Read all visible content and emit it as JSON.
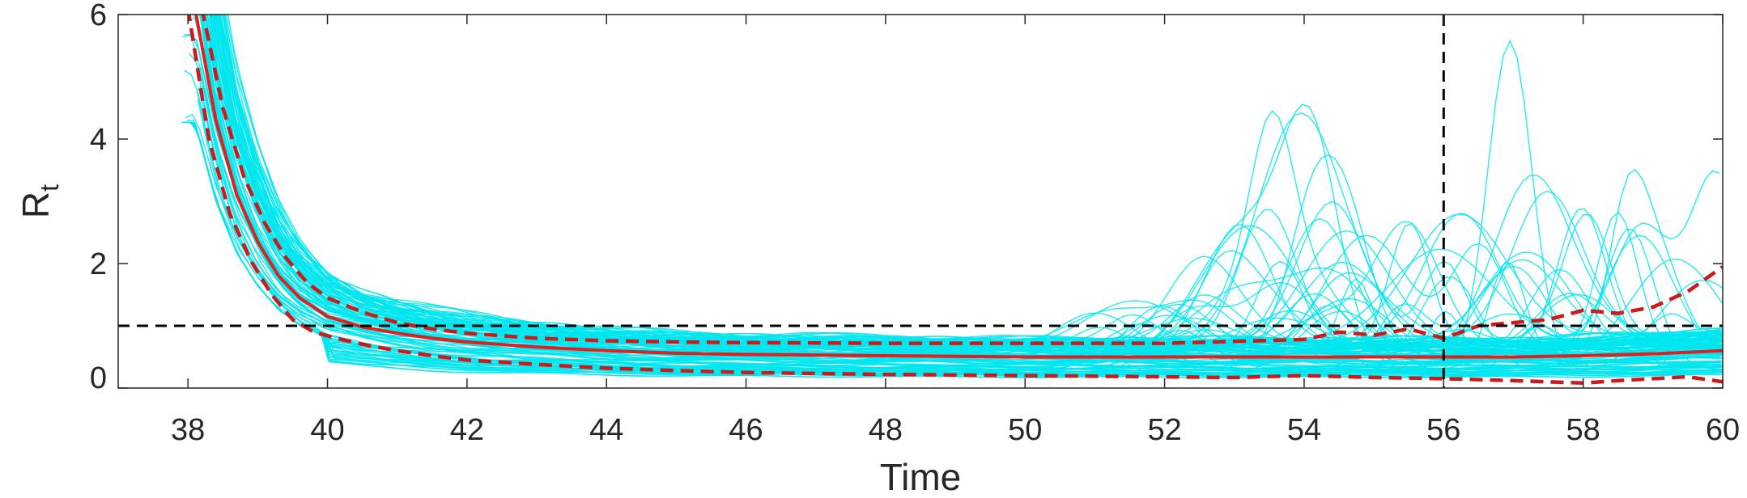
{
  "chart_data": {
    "type": "line",
    "xlabel": "Time",
    "ylabel": "R",
    "ylabel_subscript": "t",
    "xlim": [
      37,
      60
    ],
    "ylim": [
      0,
      6
    ],
    "xticks": [
      38,
      40,
      42,
      44,
      46,
      48,
      50,
      52,
      54,
      56,
      58,
      60
    ],
    "yticks": [
      0,
      2,
      4,
      6
    ],
    "grid": false,
    "legend": "none",
    "colors": {
      "samples": "#00e5ee",
      "median": "#e01f1f",
      "bounds": "#cc1a1a",
      "reference": "#000000"
    },
    "reference_lines": {
      "hline_y": 1,
      "vline_x": 56
    },
    "sample_count": 120,
    "series": [
      {
        "role": "median",
        "style": "solid",
        "x": [
          38.1,
          38.4,
          38.7,
          39.0,
          39.3,
          39.6,
          40.0,
          40.5,
          41.0,
          41.5,
          42,
          43,
          44,
          45,
          46,
          48,
          50,
          52,
          54,
          56,
          57,
          58,
          59,
          60
        ],
        "y": [
          6.1,
          4.3,
          3.1,
          2.35,
          1.8,
          1.45,
          1.15,
          0.98,
          0.88,
          0.8,
          0.74,
          0.66,
          0.6,
          0.56,
          0.54,
          0.52,
          0.5,
          0.5,
          0.5,
          0.5,
          0.5,
          0.52,
          0.55,
          0.6
        ]
      },
      {
        "role": "upper",
        "style": "dashed",
        "x": [
          38.2,
          38.5,
          38.8,
          39.1,
          39.4,
          39.7,
          40.0,
          40.5,
          41.0,
          41.5,
          42,
          43,
          44,
          45,
          46,
          48,
          50,
          52,
          53,
          54,
          54.5,
          55,
          55.5,
          56,
          56.5,
          57,
          57.5,
          58,
          58.5,
          59,
          59.5,
          60
        ],
        "y": [
          6.1,
          4.5,
          3.4,
          2.65,
          2.1,
          1.7,
          1.45,
          1.22,
          1.05,
          0.95,
          0.88,
          0.8,
          0.76,
          0.74,
          0.73,
          0.72,
          0.72,
          0.72,
          0.75,
          0.78,
          0.9,
          0.85,
          0.95,
          0.8,
          1.0,
          1.05,
          1.1,
          1.25,
          1.2,
          1.3,
          1.55,
          1.95
        ]
      },
      {
        "role": "lower",
        "style": "dashed",
        "x": [
          38.0,
          38.3,
          38.6,
          38.9,
          39.2,
          39.5,
          39.8,
          40.2,
          40.6,
          41.0,
          41.5,
          42,
          43,
          44,
          45,
          46,
          48,
          50,
          52,
          53,
          54,
          55,
          56,
          57,
          58,
          58.5,
          59,
          59.5,
          60
        ],
        "y": [
          6.1,
          4.0,
          2.8,
          2.05,
          1.5,
          1.1,
          0.9,
          0.78,
          0.68,
          0.6,
          0.52,
          0.45,
          0.38,
          0.32,
          0.28,
          0.25,
          0.22,
          0.2,
          0.18,
          0.17,
          0.2,
          0.17,
          0.15,
          0.12,
          0.08,
          0.12,
          0.15,
          0.18,
          0.1
        ]
      }
    ]
  }
}
